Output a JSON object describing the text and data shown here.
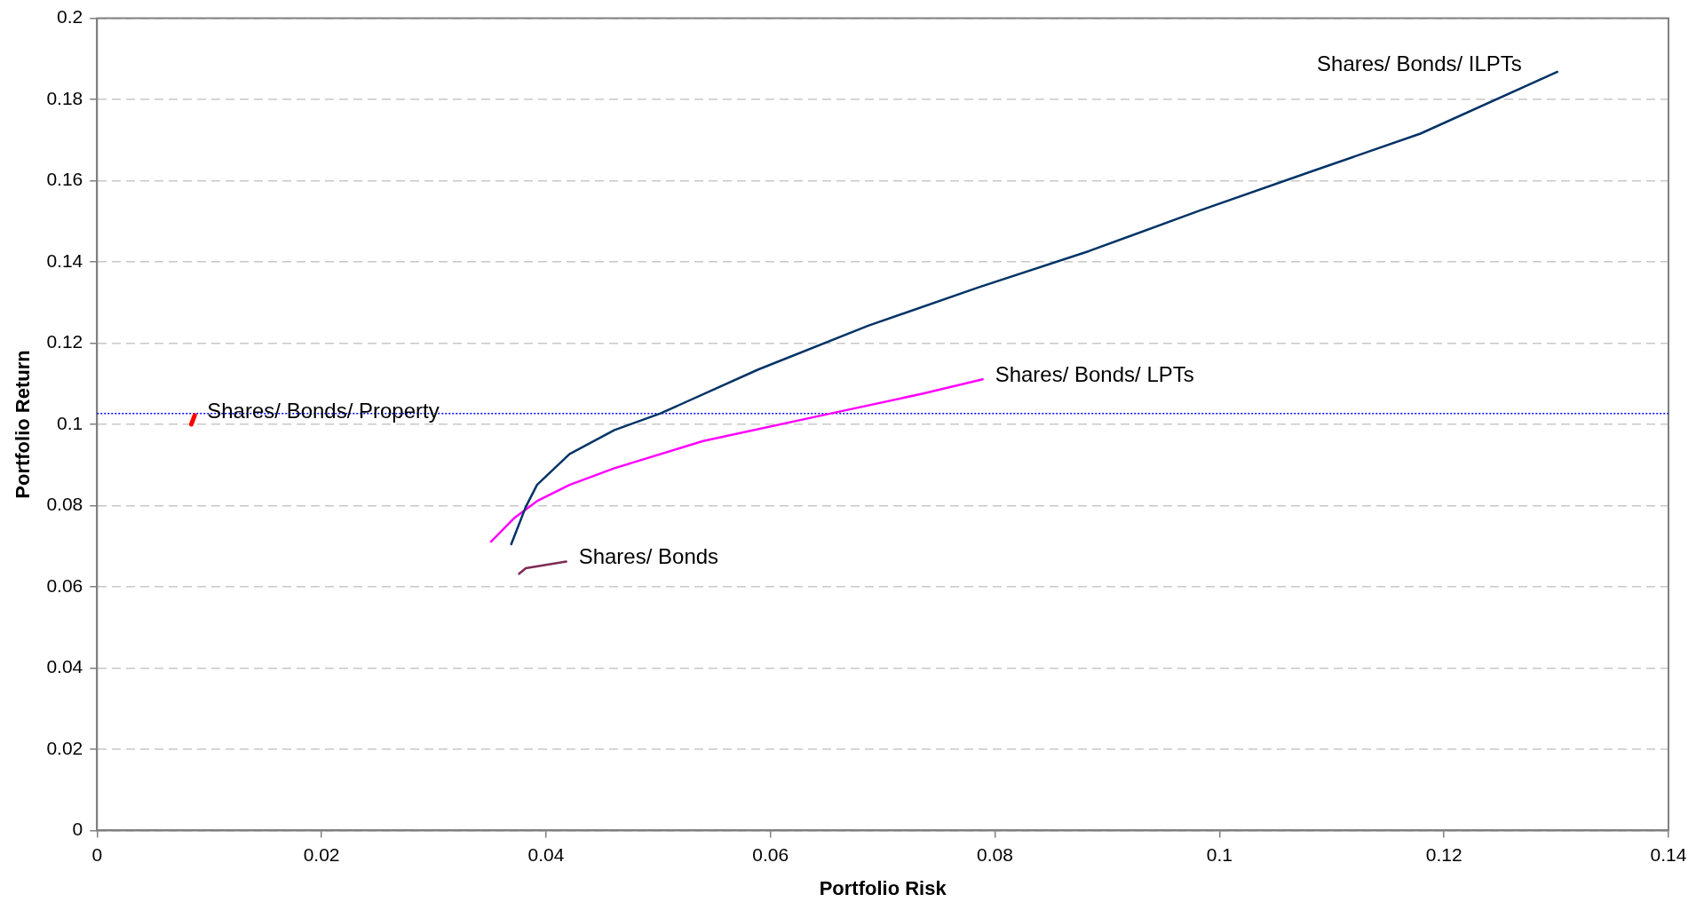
{
  "chart_data": {
    "type": "line",
    "xlabel": "Portfolio Risk",
    "ylabel": "Portfolio Return",
    "xlim": [
      0,
      0.14
    ],
    "xticks": [
      0,
      0.02,
      0.04,
      0.06,
      0.08,
      0.1,
      0.12,
      0.14
    ],
    "ylim": [
      0,
      0.2
    ],
    "yticks": [
      0,
      0.02,
      0.04,
      0.06,
      0.08,
      0.1,
      0.12,
      0.14,
      0.16,
      0.18,
      0.2
    ],
    "grid": "y",
    "legend": false,
    "marker": "none",
    "line_style": "solid",
    "series": [
      {
        "name": "Shares/ Bonds/ Property",
        "color": "#ff0000",
        "x": [
          0.0084,
          0.0087
        ],
        "values": [
          0.1,
          0.1022
        ]
      },
      {
        "name": "Shares/ Bonds/ ILPTs",
        "color": "#003366",
        "x": [
          0.0369,
          0.0382,
          0.0392,
          0.0421,
          0.0461,
          0.0502,
          0.0589,
          0.0687,
          0.0786,
          0.0884,
          0.0983,
          0.1081,
          0.1179,
          0.1301
        ],
        "values": [
          0.0705,
          0.0797,
          0.0851,
          0.0927,
          0.0986,
          0.1027,
          0.1135,
          0.1243,
          0.1338,
          0.1427,
          0.1527,
          0.1622,
          0.1716,
          0.1868
        ]
      },
      {
        "name": "Shares/ Bonds/ LPTs",
        "color": "#ff00ff",
        "x": [
          0.0351,
          0.0372,
          0.0392,
          0.0421,
          0.0461,
          0.054,
          0.0654,
          0.0736,
          0.0789
        ],
        "values": [
          0.0711,
          0.077,
          0.0811,
          0.0851,
          0.0892,
          0.0959,
          0.1027,
          0.1076,
          0.1111
        ]
      },
      {
        "name": "Shares/ Bonds",
        "color": "#7f2a55",
        "x": [
          0.0376,
          0.0382,
          0.0418
        ],
        "values": [
          0.0632,
          0.0646,
          0.0662
        ]
      }
    ],
    "ref_lines": [
      {
        "axis": "y",
        "value": 0.1027,
        "color": "#0000ff",
        "line_style": "dotted"
      }
    ]
  }
}
